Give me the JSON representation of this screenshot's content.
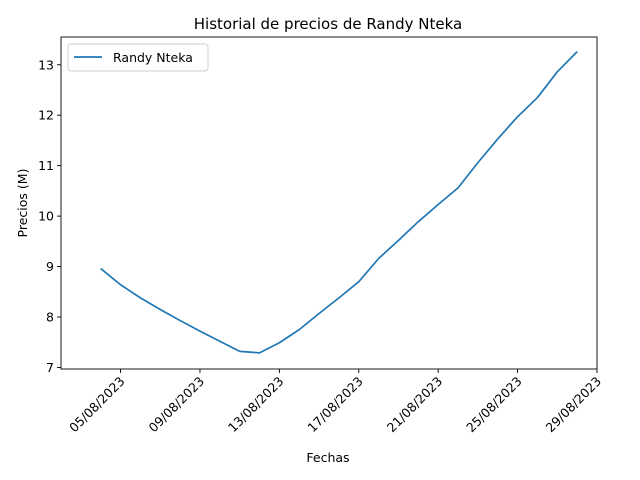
{
  "chart_data": {
    "type": "line",
    "title": "Historial de precios de Randy Nteka",
    "xlabel": "Fechas",
    "ylabel": "Precios (M)",
    "x_is_date": true,
    "xlim": [
      "2023-08-02",
      "2023-08-29"
    ],
    "ylim": [
      6.97,
      13.55
    ],
    "xticks": [
      {
        "date": "2023-08-05",
        "label": "05/08/2023"
      },
      {
        "date": "2023-08-09",
        "label": "09/08/2023"
      },
      {
        "date": "2023-08-13",
        "label": "13/08/2023"
      },
      {
        "date": "2023-08-17",
        "label": "17/08/2023"
      },
      {
        "date": "2023-08-21",
        "label": "21/08/2023"
      },
      {
        "date": "2023-08-25",
        "label": "25/08/2023"
      },
      {
        "date": "2023-08-29",
        "label": "29/08/2023"
      }
    ],
    "yticks": [
      {
        "value": 7,
        "label": "7"
      },
      {
        "value": 8,
        "label": "8"
      },
      {
        "value": 9,
        "label": "9"
      },
      {
        "value": 10,
        "label": "10"
      },
      {
        "value": 11,
        "label": "11"
      },
      {
        "value": 12,
        "label": "12"
      },
      {
        "value": 13,
        "label": "13"
      }
    ],
    "grid": false,
    "legend_position": "top-left",
    "series": [
      {
        "name": "Randy Nteka",
        "color": "#1f77b4",
        "points": [
          {
            "x": "2023-08-04",
            "y": 8.96
          },
          {
            "x": "2023-08-05",
            "y": 8.64
          },
          {
            "x": "2023-08-06",
            "y": 8.38
          },
          {
            "x": "2023-08-07",
            "y": 8.15
          },
          {
            "x": "2023-08-08",
            "y": 7.93
          },
          {
            "x": "2023-08-09",
            "y": 7.72
          },
          {
            "x": "2023-08-10",
            "y": 7.52
          },
          {
            "x": "2023-08-11",
            "y": 7.32
          },
          {
            "x": "2023-08-12",
            "y": 7.29
          },
          {
            "x": "2023-08-13",
            "y": 7.49
          },
          {
            "x": "2023-08-14",
            "y": 7.75
          },
          {
            "x": "2023-08-15",
            "y": 8.07
          },
          {
            "x": "2023-08-16",
            "y": 8.38
          },
          {
            "x": "2023-08-17",
            "y": 8.7
          },
          {
            "x": "2023-08-18",
            "y": 9.16
          },
          {
            "x": "2023-08-19",
            "y": 9.52
          },
          {
            "x": "2023-08-20",
            "y": 9.89
          },
          {
            "x": "2023-08-21",
            "y": 10.23
          },
          {
            "x": "2023-08-22",
            "y": 10.56
          },
          {
            "x": "2023-08-23",
            "y": 11.06
          },
          {
            "x": "2023-08-24",
            "y": 11.53
          },
          {
            "x": "2023-08-25",
            "y": 11.97
          },
          {
            "x": "2023-08-26",
            "y": 12.35
          },
          {
            "x": "2023-08-27",
            "y": 12.86
          },
          {
            "x": "2023-08-28",
            "y": 13.26
          }
        ]
      }
    ]
  }
}
